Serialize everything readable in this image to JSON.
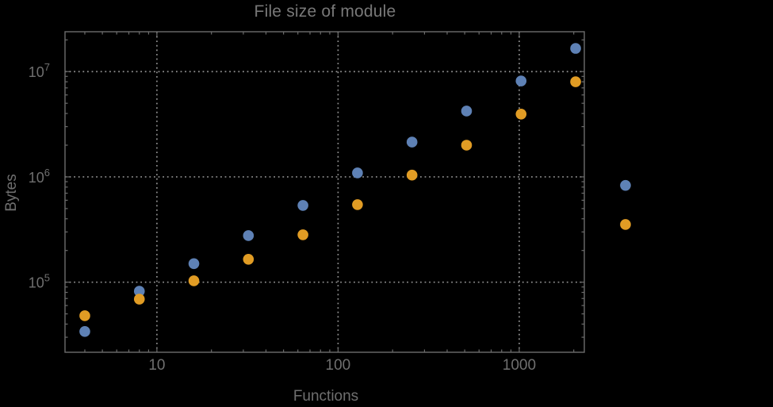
{
  "title": "File size of module",
  "chart_data": {
    "type": "scatter",
    "scale": "log-log",
    "title": "File size of module",
    "xlabel": "Functions",
    "ylabel": "Bytes",
    "grid": "dotted",
    "legend": "none",
    "x": [
      4,
      8,
      16,
      32,
      64,
      128,
      256,
      512,
      1024,
      2048,
      3860
    ],
    "series": [
      {
        "name": "series-blue",
        "color": "#5E81B5",
        "values": [
          34000,
          82000,
          150000,
          277000,
          536000,
          1090000,
          2140000,
          4220000,
          8150000,
          16600000,
          830000
        ]
      },
      {
        "name": "series-orange",
        "color": "#E19C24",
        "values": [
          48000,
          69000,
          103000,
          165000,
          282000,
          545000,
          1040000,
          2000000,
          3950000,
          8000000,
          353000
        ]
      }
    ],
    "xlim": [
      3.11,
      2287
    ],
    "ylim": [
      21600,
      23900000
    ],
    "x_ticks": [
      {
        "value": 10,
        "label": "10"
      },
      {
        "value": 100,
        "label": "100"
      },
      {
        "value": 1000,
        "label": "1000"
      }
    ],
    "y_ticks": [
      {
        "value": 100000,
        "base": "10",
        "exp": "5"
      },
      {
        "value": 1000000,
        "base": "10",
        "exp": "6"
      },
      {
        "value": 10000000,
        "base": "10",
        "exp": "7"
      }
    ],
    "colors": {
      "background": "#000000",
      "frame": "#6c6c6c",
      "grid": "#909090",
      "tick_text": "#6f6f6f",
      "title_text": "#787878"
    }
  }
}
